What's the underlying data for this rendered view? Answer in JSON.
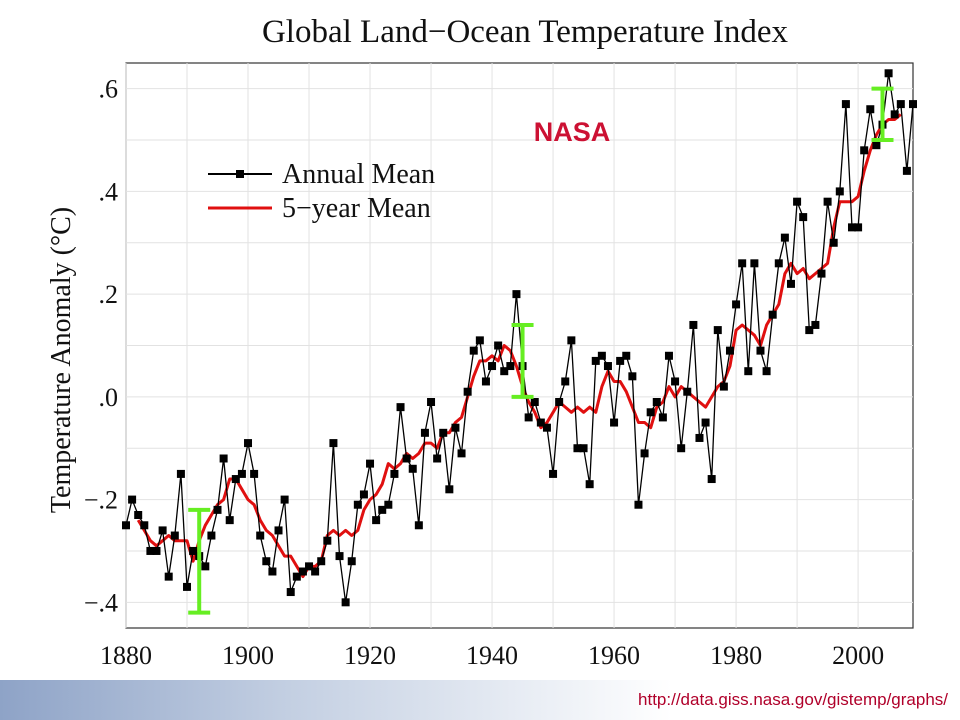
{
  "colors": {
    "annual": "#000000",
    "five_year": "#e01010",
    "error_bar": "#66ee22",
    "watermark": "#cc1133",
    "url": "#b0002a"
  },
  "watermark": "NASA",
  "source_url": "http://data.giss.nasa.gov/gistemp/graphs/",
  "chart_data": {
    "type": "line",
    "title": "Global Land−Ocean Temperature Index",
    "ylabel": "Temperature Anomaly (°C)",
    "xlabel": "",
    "xlim": [
      1880,
      2009
    ],
    "ylim": [
      -0.45,
      0.65
    ],
    "x_ticks": [
      1880,
      1900,
      1920,
      1940,
      1960,
      1980,
      2000
    ],
    "y_ticks": [
      {
        "value": -0.4,
        "label": "−.4"
      },
      {
        "value": -0.2,
        "label": "−.2"
      },
      {
        "value": 0.0,
        "label": ".0"
      },
      {
        "value": 0.2,
        "label": ".2"
      },
      {
        "value": 0.4,
        "label": ".4"
      },
      {
        "value": 0.6,
        "label": ".6"
      }
    ],
    "grid": true,
    "legend_position": "upper-left",
    "series": [
      {
        "name": "Annual Mean",
        "style": "line-with-square-markers",
        "x": [
          1880,
          1881,
          1882,
          1883,
          1884,
          1885,
          1886,
          1887,
          1888,
          1889,
          1890,
          1891,
          1892,
          1893,
          1894,
          1895,
          1896,
          1897,
          1898,
          1899,
          1900,
          1901,
          1902,
          1903,
          1904,
          1905,
          1906,
          1907,
          1908,
          1909,
          1910,
          1911,
          1912,
          1913,
          1914,
          1915,
          1916,
          1917,
          1918,
          1919,
          1920,
          1921,
          1922,
          1923,
          1924,
          1925,
          1926,
          1927,
          1928,
          1929,
          1930,
          1931,
          1932,
          1933,
          1934,
          1935,
          1936,
          1937,
          1938,
          1939,
          1940,
          1941,
          1942,
          1943,
          1944,
          1945,
          1946,
          1947,
          1948,
          1949,
          1950,
          1951,
          1952,
          1953,
          1954,
          1955,
          1956,
          1957,
          1958,
          1959,
          1960,
          1961,
          1962,
          1963,
          1964,
          1965,
          1966,
          1967,
          1968,
          1969,
          1970,
          1971,
          1972,
          1973,
          1974,
          1975,
          1976,
          1977,
          1978,
          1979,
          1980,
          1981,
          1982,
          1983,
          1984,
          1985,
          1986,
          1987,
          1988,
          1989,
          1990,
          1991,
          1992,
          1993,
          1994,
          1995,
          1996,
          1997,
          1998,
          1999,
          2000,
          2001,
          2002,
          2003,
          2004,
          2005,
          2006,
          2007,
          2008,
          2009
        ],
        "values": [
          -0.25,
          -0.2,
          -0.23,
          -0.25,
          -0.3,
          -0.3,
          -0.26,
          -0.35,
          -0.27,
          -0.15,
          -0.37,
          -0.3,
          -0.31,
          -0.33,
          -0.27,
          -0.22,
          -0.12,
          -0.24,
          -0.16,
          -0.15,
          -0.09,
          -0.15,
          -0.27,
          -0.32,
          -0.34,
          -0.26,
          -0.2,
          -0.38,
          -0.35,
          -0.34,
          -0.33,
          -0.34,
          -0.32,
          -0.28,
          -0.09,
          -0.31,
          -0.4,
          -0.32,
          -0.21,
          -0.19,
          -0.13,
          -0.24,
          -0.22,
          -0.21,
          -0.15,
          -0.02,
          -0.12,
          -0.14,
          -0.25,
          -0.07,
          -0.01,
          -0.12,
          -0.07,
          -0.18,
          -0.06,
          -0.11,
          0.01,
          0.09,
          0.11,
          0.03,
          0.06,
          0.1,
          0.05,
          0.06,
          0.2,
          0.06,
          -0.04,
          -0.01,
          -0.05,
          -0.06,
          -0.15,
          -0.01,
          0.03,
          0.11,
          -0.1,
          -0.1,
          -0.17,
          0.07,
          0.08,
          0.06,
          -0.05,
          0.07,
          0.08,
          0.04,
          -0.21,
          -0.11,
          -0.03,
          -0.01,
          -0.04,
          0.08,
          0.03,
          -0.1,
          0.01,
          0.14,
          -0.08,
          -0.05,
          -0.16,
          0.13,
          0.02,
          0.09,
          0.18,
          0.26,
          0.05,
          0.26,
          0.09,
          0.05,
          0.16,
          0.26,
          0.31,
          0.22,
          0.38,
          0.35,
          0.13,
          0.14,
          0.24,
          0.38,
          0.3,
          0.4,
          0.57,
          0.33,
          0.33,
          0.48,
          0.56,
          0.49,
          0.53,
          0.63,
          0.55,
          0.57,
          0.44,
          0.57
        ]
      },
      {
        "name": "5−year Mean",
        "style": "line",
        "x": [
          1882,
          1883,
          1884,
          1885,
          1886,
          1887,
          1888,
          1889,
          1890,
          1891,
          1892,
          1893,
          1894,
          1895,
          1896,
          1897,
          1898,
          1899,
          1900,
          1901,
          1902,
          1903,
          1904,
          1905,
          1906,
          1907,
          1908,
          1909,
          1910,
          1911,
          1912,
          1913,
          1914,
          1915,
          1916,
          1917,
          1918,
          1919,
          1920,
          1921,
          1922,
          1923,
          1924,
          1925,
          1926,
          1927,
          1928,
          1929,
          1930,
          1931,
          1932,
          1933,
          1934,
          1935,
          1936,
          1937,
          1938,
          1939,
          1940,
          1941,
          1942,
          1943,
          1944,
          1945,
          1946,
          1947,
          1948,
          1949,
          1950,
          1951,
          1952,
          1953,
          1954,
          1955,
          1956,
          1957,
          1958,
          1959,
          1960,
          1961,
          1962,
          1963,
          1964,
          1965,
          1966,
          1967,
          1968,
          1969,
          1970,
          1971,
          1972,
          1973,
          1974,
          1975,
          1976,
          1977,
          1978,
          1979,
          1980,
          1981,
          1982,
          1983,
          1984,
          1985,
          1986,
          1987,
          1988,
          1989,
          1990,
          1991,
          1992,
          1993,
          1994,
          1995,
          1996,
          1997,
          1998,
          1999,
          2000,
          2001,
          2002,
          2003,
          2004,
          2005,
          2006,
          2007
        ],
        "values": [
          -0.24,
          -0.26,
          -0.28,
          -0.29,
          -0.28,
          -0.27,
          -0.28,
          -0.28,
          -0.28,
          -0.32,
          -0.28,
          -0.25,
          -0.23,
          -0.21,
          -0.2,
          -0.16,
          -0.16,
          -0.18,
          -0.2,
          -0.21,
          -0.24,
          -0.26,
          -0.27,
          -0.29,
          -0.31,
          -0.31,
          -0.33,
          -0.35,
          -0.33,
          -0.33,
          -0.32,
          -0.27,
          -0.26,
          -0.27,
          -0.26,
          -0.27,
          -0.26,
          -0.22,
          -0.2,
          -0.19,
          -0.17,
          -0.13,
          -0.14,
          -0.13,
          -0.11,
          -0.12,
          -0.11,
          -0.09,
          -0.09,
          -0.1,
          -0.07,
          -0.07,
          -0.05,
          -0.04,
          0.0,
          0.04,
          0.07,
          0.07,
          0.08,
          0.07,
          0.1,
          0.09,
          0.06,
          0.02,
          -0.01,
          -0.03,
          -0.06,
          -0.05,
          -0.03,
          -0.01,
          -0.02,
          -0.03,
          -0.02,
          -0.03,
          -0.02,
          -0.03,
          0.02,
          0.05,
          0.03,
          0.03,
          0.01,
          -0.02,
          -0.05,
          -0.05,
          -0.06,
          -0.02,
          -0.01,
          0.02,
          0.0,
          0.02,
          0.01,
          0.0,
          -0.01,
          -0.02,
          0.0,
          0.02,
          0.03,
          0.06,
          0.13,
          0.14,
          0.13,
          0.12,
          0.1,
          0.14,
          0.16,
          0.18,
          0.24,
          0.26,
          0.24,
          0.25,
          0.23,
          0.24,
          0.25,
          0.26,
          0.33,
          0.38,
          0.38,
          0.38,
          0.39,
          0.44,
          0.48,
          0.51,
          0.53,
          0.54,
          0.54,
          0.55
        ]
      }
    ],
    "error_bars": [
      {
        "x": 1892,
        "low": -0.42,
        "high": -0.22
      },
      {
        "x": 1945,
        "low": 0.0,
        "high": 0.14
      },
      {
        "x": 2004,
        "low": 0.5,
        "high": 0.6
      }
    ]
  }
}
